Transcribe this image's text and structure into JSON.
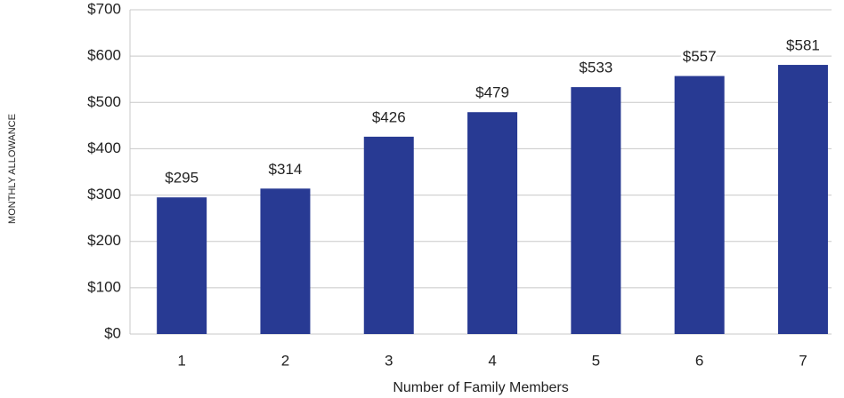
{
  "chart_data": {
    "type": "bar",
    "y_label": "MONTHLY ALLOWANCE",
    "x_label": "Number of Family Members",
    "categories": [
      "1",
      "2",
      "3",
      "4",
      "5",
      "6",
      "7"
    ],
    "values": [
      295,
      314,
      426,
      479,
      533,
      557,
      581
    ],
    "value_labels": [
      "$295",
      "$314",
      "$426",
      "$479",
      "$533",
      "$557",
      "$581"
    ],
    "color": "#283a93",
    "ylim": [
      0,
      700
    ],
    "yticks": [
      {
        "value": 0,
        "label": "$0"
      },
      {
        "value": 100,
        "label": "$100"
      },
      {
        "value": 200,
        "label": "$200"
      },
      {
        "value": 300,
        "label": "$300"
      },
      {
        "value": 400,
        "label": "$400"
      },
      {
        "value": 500,
        "label": "$500"
      },
      {
        "value": 600,
        "label": "$600"
      },
      {
        "value": 700,
        "label": "$700"
      }
    ],
    "grid": true
  }
}
